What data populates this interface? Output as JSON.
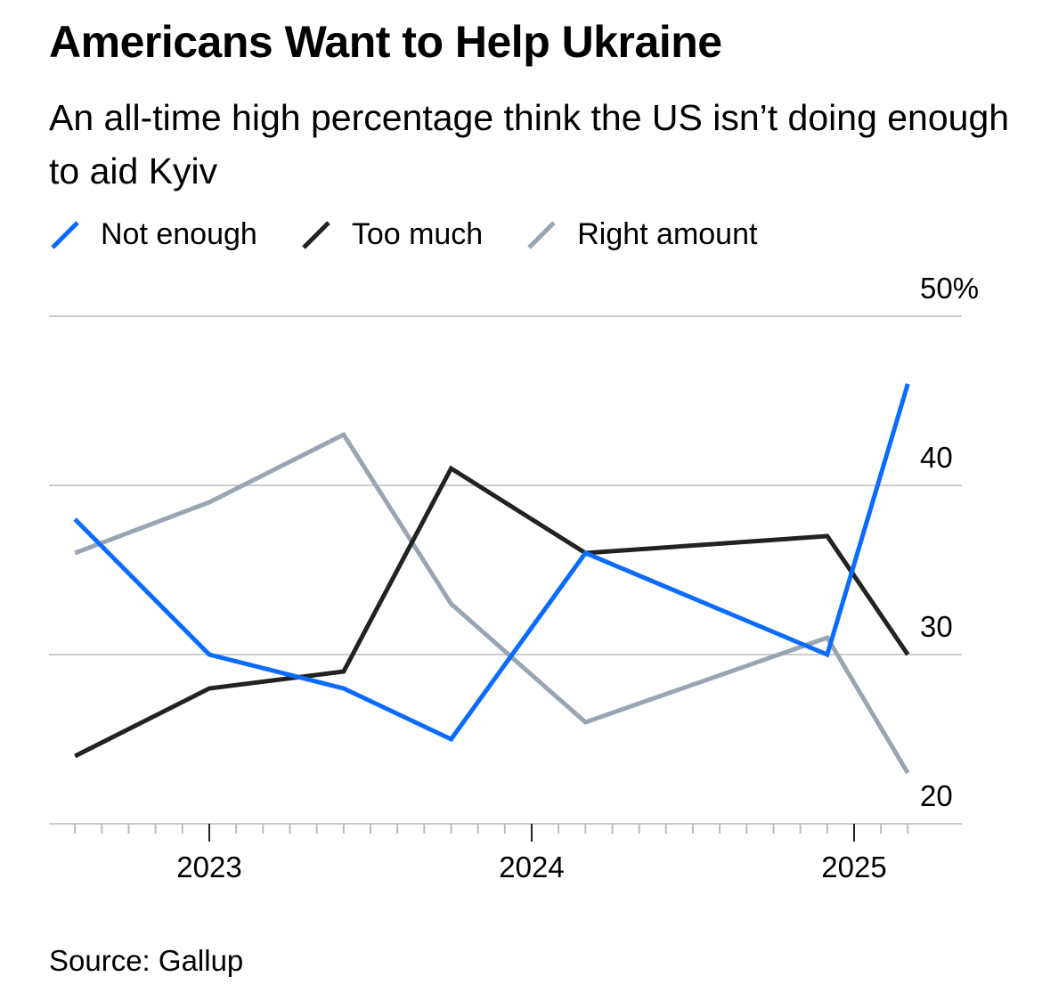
{
  "chart_data": {
    "type": "line",
    "title": "Americans Want to Help Ukraine",
    "subtitle": "An all-time high percentage think the US isn’t doing enough to aid Kyiv",
    "source": "Source: Gallup",
    "x": [
      "2022-08",
      "2023-01",
      "2023-06",
      "2023-10",
      "2024-03",
      "2024-12",
      "2025-03"
    ],
    "series": [
      {
        "name": "Not enough",
        "color": "#0a6cff",
        "values": [
          38,
          30,
          28,
          25,
          36,
          30,
          46
        ]
      },
      {
        "name": "Too much",
        "color": "#222222",
        "values": [
          24,
          28,
          29,
          41,
          36,
          37,
          30
        ]
      },
      {
        "name": "Right amount",
        "color": "#9aa5b4",
        "values": [
          36,
          39,
          43,
          33,
          26,
          31,
          23
        ]
      }
    ],
    "ylim": [
      20,
      50
    ],
    "yticks": [
      {
        "v": 50,
        "label": "50%"
      },
      {
        "v": 40,
        "label": "40"
      },
      {
        "v": 30,
        "label": "30"
      },
      {
        "v": 20,
        "label": "20"
      }
    ],
    "xticks": [
      {
        "v": "2023-01",
        "label": "2023"
      },
      {
        "v": "2024-01",
        "label": "2024"
      },
      {
        "v": "2025-01",
        "label": "2025"
      }
    ],
    "xrange": [
      "2022-08",
      "2025-03"
    ],
    "grid": true,
    "legend": "top-left"
  }
}
